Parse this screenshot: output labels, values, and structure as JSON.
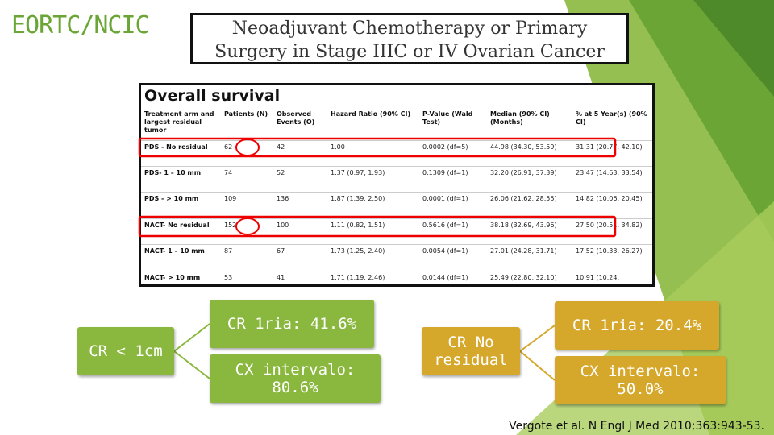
{
  "header": {
    "title": "EORTC/NCIC"
  },
  "banner": [
    "Neoadjuvant Chemotherapy or Primary",
    "Surgery in Stage IIIC or IV Ovarian Cancer"
  ],
  "table": {
    "title": "Overall survival",
    "columns": [
      "Treatment arm and largest residual tumor",
      "Patients (N)",
      "Observed Events (O)",
      "Hazard Ratio (90% CI)",
      "P-Value (Wald Test)",
      "Median (90% CI) (Months)",
      "% at 5 Year(s) (90% CI)"
    ],
    "rows": [
      [
        "PDS - No residual",
        "62",
        "42",
        "1.00",
        "0.0002 (df=5)",
        "44.98 (34.30, 53.59)",
        "31.31 (20.77, 42.10)"
      ],
      [
        "PDS- 1 – 10 mm",
        "74",
        "52",
        "1.37 (0.97, 1.93)",
        "0.1309 (df=1)",
        "32.20 (26.91, 37.39)",
        "23.47 (14.63, 33.54)"
      ],
      [
        "PDS - > 10 mm",
        "109",
        "136",
        "1.87 (1.39, 2.50)",
        "0.0001 (df=1)",
        "26.06 (21.62, 28.55)",
        "14.82 (10.06, 20.45)"
      ],
      [
        "NACT- No residual",
        "152",
        "100",
        "1.11 (0.82, 1.51)",
        "0.5616 (df=1)",
        "38.18 (32.69, 43.96)",
        "27.50 (20.51, 34.82)"
      ],
      [
        "NACT- 1 – 10 mm",
        "87",
        "67",
        "1.73 (1.25, 2.40)",
        "0.0054 (df=1)",
        "27.01 (24.28, 31.71)",
        "17.52 (10.33, 26.27)"
      ],
      [
        "NACT- > 10 mm",
        "53",
        "41",
        "1.71 (1.19, 2.46)",
        "0.0144 (df=1)",
        "25.49 (22.80, 32.10)",
        "10.91 (10.24,"
      ]
    ]
  },
  "boxes": [
    {
      "label": "CR < 1cm",
      "items": [
        "CR 1ria: 41.6%",
        "CX intervalo: 80.6%"
      ]
    },
    {
      "label": "CR No residual",
      "items": [
        "CR 1ria: 20.4%",
        "CX intervalo: 50.0%"
      ]
    }
  ],
  "citation": "Vergote et al. N Engl J Med 2010;363:943-53."
}
